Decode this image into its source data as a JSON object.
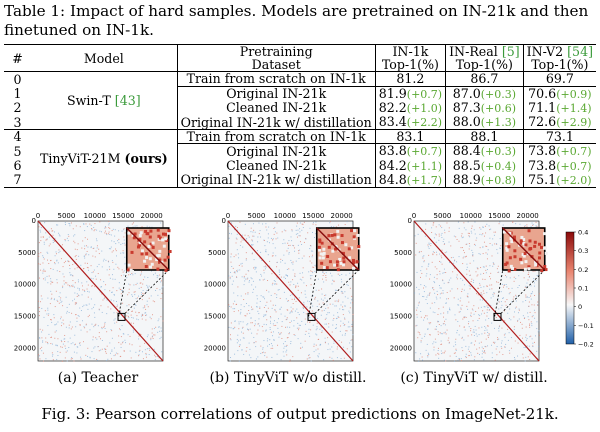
{
  "table_caption": "Table 1: Impact of hard samples. Models are pretrained on IN-21k and then finetuned on IN-1k.",
  "headers": {
    "num": "#",
    "model": "Model",
    "pre1": "Pretraining",
    "pre2": "Dataset",
    "in1k1": "IN-1k",
    "in1k2": "Top-1(%)",
    "real1": "IN-Real",
    "real_cite": "[5]",
    "real2": "Top-1(%)",
    "v21": "IN-V2",
    "v2_cite": "[54]",
    "v22": "Top-1(%)"
  },
  "models": {
    "swin": "Swin-T",
    "swin_cite": "[43]",
    "tiny": "TinyViT-21M",
    "tiny_suffix": "(ours)"
  },
  "rows": [
    {
      "num": "0",
      "dataset": "Train from scratch on IN-1k",
      "a": "81.2",
      "ag": "",
      "b": "86.7",
      "bg": "",
      "c": "69.7",
      "cg": ""
    },
    {
      "num": "1",
      "dataset": "Original IN-21k",
      "a": "81.9",
      "ag": "(+0.7)",
      "b": "87.0",
      "bg": "(+0.3)",
      "c": "70.6",
      "cg": "(+0.9)"
    },
    {
      "num": "2",
      "dataset": "Cleaned IN-21k",
      "a": "82.2",
      "ag": "(+1.0)",
      "b": "87.3",
      "bg": "(+0.6)",
      "c": "71.1",
      "cg": "(+1.4)"
    },
    {
      "num": "3",
      "dataset": "Original IN-21k w/ distillation",
      "a": "83.4",
      "ag": "(+2.2)",
      "b": "88.0",
      "bg": "(+1.3)",
      "c": "72.6",
      "cg": "(+2.9)"
    },
    {
      "num": "4",
      "dataset": "Train from scratch on IN-1k",
      "a": "83.1",
      "ag": "",
      "b": "88.1",
      "bg": "",
      "c": "73.1",
      "cg": ""
    },
    {
      "num": "5",
      "dataset": "Original IN-21k",
      "a": "83.8",
      "ag": "(+0.7)",
      "b": "88.4",
      "bg": "(+0.3)",
      "c": "73.8",
      "cg": "(+0.7)"
    },
    {
      "num": "6",
      "dataset": "Cleaned IN-21k",
      "a": "84.2",
      "ag": "(+1.1)",
      "b": "88.5",
      "bg": "(+0.4)",
      "c": "73.8",
      "cg": "(+0.7)"
    },
    {
      "num": "7",
      "dataset": "Original IN-21k w/ distillation",
      "a": "84.8",
      "ag": "(+1.7)",
      "b": "88.9",
      "bg": "(+0.8)",
      "c": "75.1",
      "cg": "(+2.0)"
    }
  ],
  "figure": {
    "axis_ticks_top": [
      "0",
      "5000",
      "10000",
      "15000",
      "20000"
    ],
    "axis_ticks_left": [
      "0",
      "5000",
      "10000",
      "15000",
      "20000"
    ],
    "colorbar_ticks": [
      "0.4",
      "0.3",
      "0.2",
      "0.1",
      "0",
      "−0.1",
      "−0.2"
    ],
    "subcaptions": [
      "(a) Teacher",
      "(b) TinyViT w/o distill.",
      "(c) TinyViT w/ distill."
    ],
    "caption": "Fig. 3: Pearson correlations of output predictions on ImageNet-21k."
  }
}
